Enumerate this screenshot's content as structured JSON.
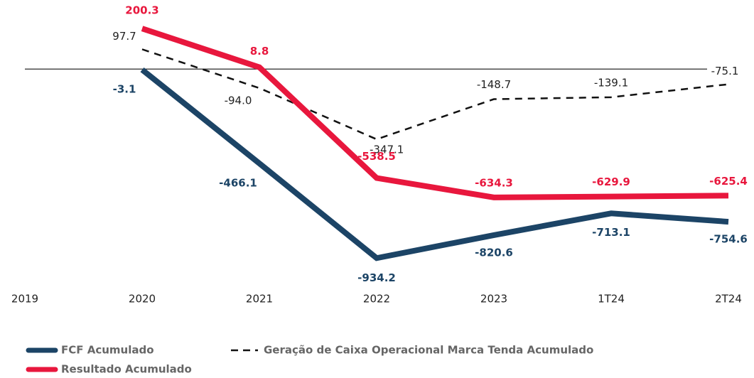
{
  "chart_data": {
    "type": "line",
    "categories": [
      "2019",
      "2020",
      "2021",
      "2022",
      "2023",
      "1T24",
      "2T24"
    ],
    "ylim": [
      -1000,
      250
    ],
    "series": [
      {
        "name": "FCF Acumulado",
        "color": "#1c4466",
        "style": "solid",
        "values": [
          null,
          -3.1,
          -466.1,
          -934.2,
          -820.6,
          -713.1,
          -754.6
        ]
      },
      {
        "name": "Geração de Caixa Operacional Marca Tenda Acumulado",
        "color": "#111111",
        "style": "dashed",
        "values": [
          null,
          97.7,
          -94,
          -347.1,
          -148.7,
          -139.1,
          -75.1
        ],
        "value_labels": [
          null,
          "97.7",
          "-94.0",
          "-347.1",
          "-148.7",
          "-139.1",
          "-75.1"
        ]
      },
      {
        "name": "Resultado Acumulado",
        "color": "#e8173d",
        "style": "solid",
        "values": [
          null,
          200.3,
          8.8,
          -538.5,
          -634.3,
          -629.9,
          -625.4
        ]
      }
    ]
  }
}
